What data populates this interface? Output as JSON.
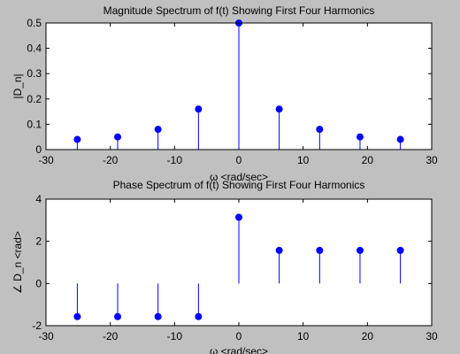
{
  "chart_data": [
    {
      "type": "stem",
      "title": "Magnitude Spectrum of f(t) Showing First Four Harmonics",
      "xlabel": "ω <rad/sec>",
      "ylabel": "|D_n|",
      "xlim": [
        -30,
        30
      ],
      "ylim": [
        0,
        0.5
      ],
      "xticks": [
        "-30",
        "-20",
        "-10",
        "0",
        "10",
        "20",
        "30"
      ],
      "yticks": [
        "0",
        "0.1",
        "0.2",
        "0.3",
        "0.4",
        "0.5"
      ],
      "grid": false,
      "series": [
        {
          "x": [
            -25.13,
            -18.85,
            -12.57,
            -6.28,
            0,
            6.28,
            12.57,
            18.85,
            25.13
          ],
          "y": [
            0.04,
            0.05,
            0.08,
            0.16,
            0.5,
            0.16,
            0.08,
            0.05,
            0.04
          ]
        }
      ],
      "colors": {
        "stem": "#0000ff",
        "axes_bg": "#ffffff",
        "frame": "#000000"
      }
    },
    {
      "type": "stem",
      "title": "Phase Spectrum of f(t) Showing First Four Harmonics",
      "xlabel": "ω <rad/sec>",
      "ylabel": "∠ D_n  <rad>",
      "xlim": [
        -30,
        30
      ],
      "ylim": [
        -2,
        4
      ],
      "xticks": [
        "-30",
        "-20",
        "-10",
        "0",
        "10",
        "20",
        "30"
      ],
      "yticks": [
        "-2",
        "0",
        "2",
        "4"
      ],
      "grid": false,
      "series": [
        {
          "x": [
            -25.13,
            -18.85,
            -12.57,
            -6.28,
            0,
            6.28,
            12.57,
            18.85,
            25.13
          ],
          "y": [
            -1.57,
            -1.57,
            -1.57,
            -1.57,
            3.14,
            1.57,
            1.57,
            1.57,
            1.57
          ]
        }
      ],
      "colors": {
        "stem": "#0000ff",
        "axes_bg": "#ffffff",
        "frame": "#000000"
      }
    }
  ]
}
